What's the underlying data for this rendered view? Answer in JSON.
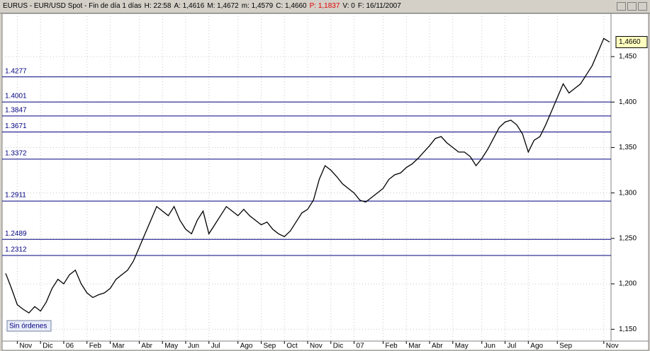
{
  "header": [
    "EURUS - EUR/USD Spot - Fin de día 1 días",
    "H: 22:58",
    "A: 1,4616",
    "M: 1,4672",
    "m: 1,4579",
    "C: 1,4660",
    "P: 1,1837",
    "V: 0",
    "F: 16/11/2007"
  ],
  "button": "Sin órdenes",
  "chart_data": {
    "type": "line",
    "color": "#000000",
    "price_tag": "1,4660",
    "categories": [
      null,
      null,
      "Nov",
      null,
      null,
      null,
      "Dic",
      null,
      null,
      null,
      "06",
      null,
      null,
      null,
      "Feb",
      null,
      null,
      null,
      "Mar",
      null,
      null,
      null,
      null,
      "Abr",
      null,
      null,
      null,
      "May",
      null,
      null,
      null,
      "Jun",
      null,
      null,
      null,
      "Jul",
      null,
      null,
      null,
      null,
      "Ago",
      null,
      null,
      null,
      "Sep",
      null,
      null,
      null,
      "Oct",
      null,
      null,
      null,
      "Nov",
      null,
      null,
      null,
      "Dic",
      null,
      null,
      null,
      "07",
      null,
      null,
      null,
      null,
      "Feb",
      null,
      null,
      null,
      "Mar",
      null,
      null,
      null,
      "Abr",
      null,
      null,
      null,
      "May",
      null,
      null,
      null,
      null,
      "Jun",
      null,
      null,
      null,
      "Jul",
      null,
      null,
      null,
      "Ago",
      null,
      null,
      null,
      null,
      "Sep",
      null,
      null,
      null,
      null,
      null,
      null,
      null,
      "Nov",
      null
    ],
    "values": [
      1.2115,
      1.195,
      1.177,
      1.172,
      1.168,
      1.175,
      1.17,
      1.18,
      1.195,
      1.205,
      1.2,
      1.21,
      1.215,
      1.2,
      1.19,
      1.185,
      1.188,
      1.19,
      1.195,
      1.205,
      1.21,
      1.215,
      1.225,
      1.24,
      1.255,
      1.27,
      1.285,
      1.28,
      1.275,
      1.285,
      1.27,
      1.26,
      1.255,
      1.27,
      1.28,
      1.255,
      1.265,
      1.275,
      1.285,
      1.28,
      1.275,
      1.282,
      1.275,
      1.27,
      1.265,
      1.268,
      1.26,
      1.255,
      1.252,
      1.258,
      1.268,
      1.278,
      1.282,
      1.292,
      1.315,
      1.33,
      1.325,
      1.318,
      1.31,
      1.305,
      1.3,
      1.292,
      1.29,
      1.295,
      1.3,
      1.305,
      1.315,
      1.32,
      1.322,
      1.328,
      1.332,
      1.338,
      1.345,
      1.352,
      1.36,
      1.362,
      1.355,
      1.35,
      1.345,
      1.345,
      1.34,
      1.33,
      1.338,
      1.348,
      1.36,
      1.372,
      1.378,
      1.38,
      1.375,
      1.365,
      1.345,
      1.358,
      1.362,
      1.375,
      1.39,
      1.405,
      1.42,
      1.41,
      1.415,
      1.42,
      1.43,
      1.44,
      1.455,
      1.47,
      1.466
    ],
    "levels": [
      1.4277,
      1.4001,
      1.3847,
      1.3671,
      1.3372,
      1.2911,
      1.2489,
      1.2312
    ],
    "level_color": "#000080",
    "ylim": [
      1.137,
      1.4975
    ],
    "yticks": [
      {
        "value": 1.15,
        "label": "1,150"
      },
      {
        "value": 1.2,
        "label": "1,200"
      },
      {
        "value": 1.25,
        "label": "1,250"
      },
      {
        "value": 1.3,
        "label": "1,300"
      },
      {
        "value": 1.35,
        "label": "1,350"
      },
      {
        "value": 1.4,
        "label": "1,400"
      },
      {
        "value": 1.45,
        "label": "1,450"
      }
    ],
    "grid": true
  }
}
